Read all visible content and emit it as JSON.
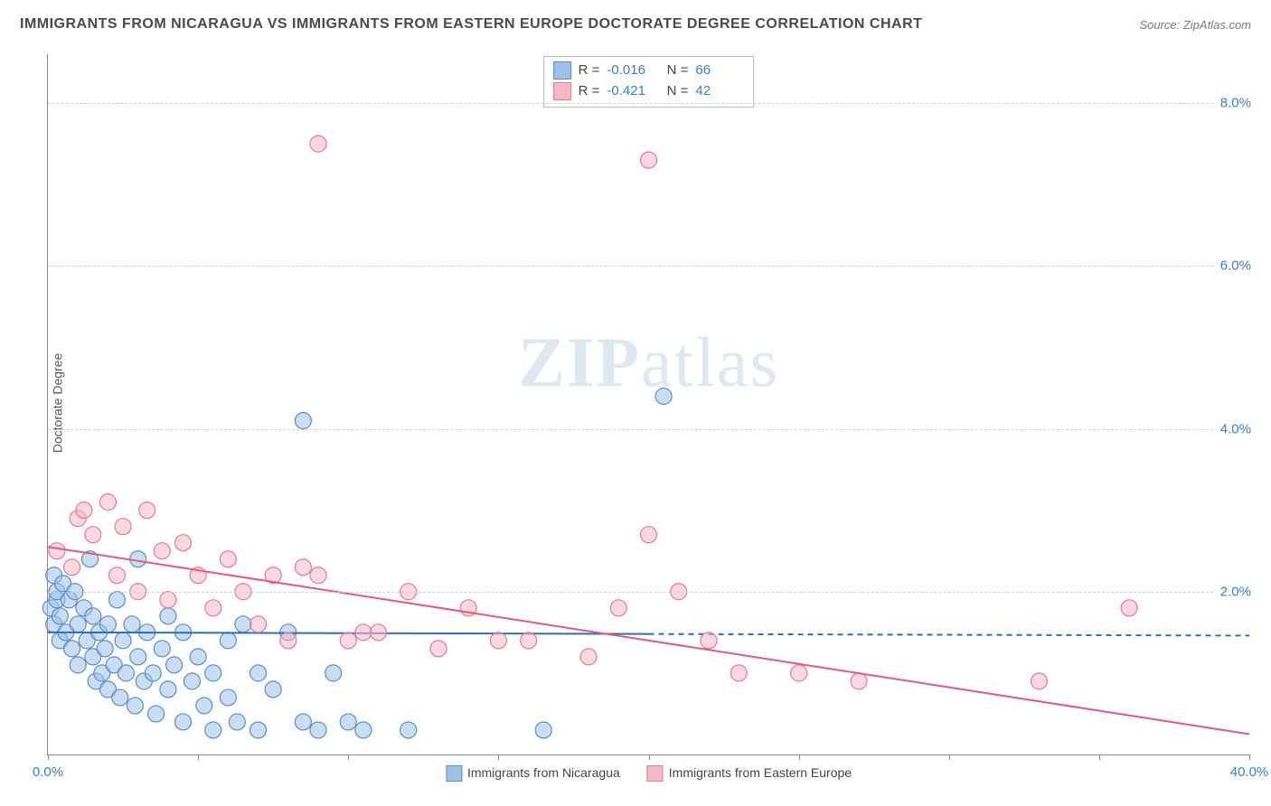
{
  "title": "IMMIGRANTS FROM NICARAGUA VS IMMIGRANTS FROM EASTERN EUROPE DOCTORATE DEGREE CORRELATION CHART",
  "source": "Source: ZipAtlas.com",
  "ylabel": "Doctorate Degree",
  "watermark_a": "ZIP",
  "watermark_b": "atlas",
  "chart": {
    "type": "scatter-with-regression",
    "background_color": "#ffffff",
    "grid_color": "#d0d0d0",
    "axis_color": "#888888",
    "tick_label_color": "#3a7fc4",
    "xlim": [
      0,
      40
    ],
    "ylim": [
      0,
      8.6
    ],
    "yticks": [
      2.0,
      4.0,
      6.0,
      8.0
    ],
    "ytick_labels": [
      "2.0%",
      "4.0%",
      "6.0%",
      "8.0%"
    ],
    "xtick_marks": [
      0,
      5,
      10,
      15,
      20,
      25,
      30,
      35,
      40
    ],
    "xtick_labels": {
      "0": "0.0%",
      "40": "40.0%"
    },
    "marker_radius": 9,
    "marker_opacity": 0.55,
    "line_width": 2,
    "series": [
      {
        "name": "Immigrants from Nicaragua",
        "color_fill": "#9fc1e6",
        "color_stroke": "#5a8fc9",
        "color_line": "#2f6db8",
        "R": "-0.016",
        "N": "66",
        "regression": {
          "x1": 0,
          "y1": 1.5,
          "x2": 20,
          "y2": 1.48,
          "extend_dash_to": 40
        },
        "points": [
          [
            0.1,
            1.8
          ],
          [
            0.2,
            2.2
          ],
          [
            0.2,
            1.6
          ],
          [
            0.3,
            1.9
          ],
          [
            0.3,
            2.0
          ],
          [
            0.4,
            1.7
          ],
          [
            0.4,
            1.4
          ],
          [
            0.5,
            2.1
          ],
          [
            0.6,
            1.5
          ],
          [
            0.7,
            1.9
          ],
          [
            0.8,
            1.3
          ],
          [
            0.9,
            2.0
          ],
          [
            1.0,
            1.6
          ],
          [
            1.0,
            1.1
          ],
          [
            1.2,
            1.8
          ],
          [
            1.3,
            1.4
          ],
          [
            1.4,
            2.4
          ],
          [
            1.5,
            1.2
          ],
          [
            1.5,
            1.7
          ],
          [
            1.6,
            0.9
          ],
          [
            1.7,
            1.5
          ],
          [
            1.8,
            1.0
          ],
          [
            1.9,
            1.3
          ],
          [
            2.0,
            1.6
          ],
          [
            2.0,
            0.8
          ],
          [
            2.2,
            1.1
          ],
          [
            2.3,
            1.9
          ],
          [
            2.4,
            0.7
          ],
          [
            2.5,
            1.4
          ],
          [
            2.6,
            1.0
          ],
          [
            2.8,
            1.6
          ],
          [
            2.9,
            0.6
          ],
          [
            3.0,
            2.4
          ],
          [
            3.0,
            1.2
          ],
          [
            3.2,
            0.9
          ],
          [
            3.3,
            1.5
          ],
          [
            3.5,
            1.0
          ],
          [
            3.6,
            0.5
          ],
          [
            3.8,
            1.3
          ],
          [
            4.0,
            1.7
          ],
          [
            4.0,
            0.8
          ],
          [
            4.2,
            1.1
          ],
          [
            4.5,
            0.4
          ],
          [
            4.5,
            1.5
          ],
          [
            4.8,
            0.9
          ],
          [
            5.0,
            1.2
          ],
          [
            5.2,
            0.6
          ],
          [
            5.5,
            0.3
          ],
          [
            5.5,
            1.0
          ],
          [
            6.0,
            1.4
          ],
          [
            6.0,
            0.7
          ],
          [
            6.3,
            0.4
          ],
          [
            6.5,
            1.6
          ],
          [
            7.0,
            0.3
          ],
          [
            7.0,
            1.0
          ],
          [
            7.5,
            0.8
          ],
          [
            8.0,
            1.5
          ],
          [
            8.5,
            0.4
          ],
          [
            9.0,
            0.3
          ],
          [
            9.5,
            1.0
          ],
          [
            10.0,
            0.4
          ],
          [
            10.5,
            0.3
          ],
          [
            12.0,
            0.3
          ],
          [
            8.5,
            4.1
          ],
          [
            16.5,
            0.3
          ],
          [
            20.5,
            4.4
          ]
        ]
      },
      {
        "name": "Immigrants from Eastern Europe",
        "color_fill": "#f5b8c6",
        "color_stroke": "#e77a95",
        "color_line": "#e15a7c",
        "R": "-0.421",
        "N": "42",
        "regression": {
          "x1": 0,
          "y1": 2.55,
          "x2": 40,
          "y2": 0.25
        },
        "points": [
          [
            0.3,
            2.5
          ],
          [
            0.8,
            2.3
          ],
          [
            1.0,
            2.9
          ],
          [
            1.2,
            3.0
          ],
          [
            1.5,
            2.7
          ],
          [
            2.0,
            3.1
          ],
          [
            2.3,
            2.2
          ],
          [
            2.5,
            2.8
          ],
          [
            3.0,
            2.0
          ],
          [
            3.3,
            3.0
          ],
          [
            3.8,
            2.5
          ],
          [
            4.0,
            1.9
          ],
          [
            4.5,
            2.6
          ],
          [
            5.0,
            2.2
          ],
          [
            5.5,
            1.8
          ],
          [
            6.0,
            2.4
          ],
          [
            6.5,
            2.0
          ],
          [
            7.0,
            1.6
          ],
          [
            7.5,
            2.2
          ],
          [
            8.0,
            1.4
          ],
          [
            8.5,
            2.3
          ],
          [
            9.0,
            2.2
          ],
          [
            10.0,
            1.4
          ],
          [
            10.5,
            1.5
          ],
          [
            11.0,
            1.5
          ],
          [
            12.0,
            2.0
          ],
          [
            13.0,
            1.3
          ],
          [
            14.0,
            1.8
          ],
          [
            15.0,
            1.4
          ],
          [
            16.0,
            1.4
          ],
          [
            18.0,
            1.2
          ],
          [
            19.0,
            1.8
          ],
          [
            20.0,
            2.7
          ],
          [
            21.0,
            2.0
          ],
          [
            22.0,
            1.4
          ],
          [
            23.0,
            1.0
          ],
          [
            25.0,
            1.0
          ],
          [
            27.0,
            0.9
          ],
          [
            33.0,
            0.9
          ],
          [
            36.0,
            1.8
          ],
          [
            9.0,
            7.5
          ],
          [
            20.0,
            7.3
          ]
        ]
      }
    ],
    "legend_bottom": [
      {
        "label": "Immigrants from Nicaragua",
        "fill": "#9fc1e6",
        "stroke": "#5a8fc9"
      },
      {
        "label": "Immigrants from Eastern Europe",
        "fill": "#f5b8c6",
        "stroke": "#e77a95"
      }
    ]
  }
}
